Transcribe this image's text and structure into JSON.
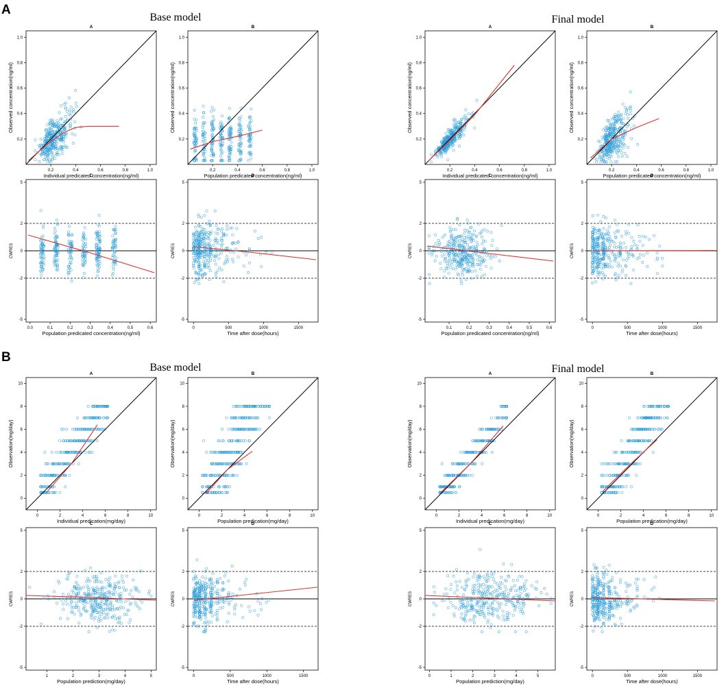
{
  "figure": {
    "panels": [
      {
        "letter": "A",
        "left_title": "Base model",
        "right_title": "Final model"
      },
      {
        "letter": "B",
        "left_title": "Base model",
        "right_title": "Final model"
      }
    ]
  },
  "colors": {
    "point": "#2f9ed8",
    "loess": "#e0302a",
    "identity": "#000000",
    "ref": "#000000"
  },
  "chart_data": [
    {
      "id": "A-base-A",
      "type": "scatter",
      "title": "A",
      "panel": "A",
      "model": "Base model",
      "xlabel": "Individual predicated concentration(ng/ml)",
      "ylabel": "Observed concentration(ng/ml)",
      "xlim": [
        0,
        1.05
      ],
      "ylim": [
        0,
        1.05
      ],
      "xticks": [
        0.2,
        0.4,
        0.6,
        0.8,
        1.0
      ],
      "yticks": [
        0.2,
        0.4,
        0.6,
        0.8,
        1.0
      ],
      "tick_labels": [
        "0.2",
        "0.4",
        "0.6",
        "0.8",
        "1.0"
      ],
      "identity_line": true,
      "trend": [
        [
          0.02,
          0.03
        ],
        [
          0.1,
          0.1
        ],
        [
          0.2,
          0.18
        ],
        [
          0.3,
          0.25
        ],
        [
          0.4,
          0.29
        ],
        [
          0.5,
          0.3
        ],
        [
          0.75,
          0.3
        ]
      ],
      "cloud": {
        "x_mean": 0.22,
        "x_sd": 0.09,
        "y_slope": 0.9,
        "y_sd": 0.08,
        "x_min": 0.02,
        "x_max": 0.75
      }
    },
    {
      "id": "A-base-B",
      "type": "scatter",
      "title": "B",
      "panel": "A",
      "model": "Base model",
      "xlabel": "Population predicated concentration(ng/ml)",
      "ylabel": "Observed concentration(ng/ml)",
      "xlim": [
        0,
        1.05
      ],
      "ylim": [
        0,
        1.05
      ],
      "xticks": [
        0.2,
        0.4,
        0.6,
        0.8,
        1.0
      ],
      "yticks": [
        0.2,
        0.4,
        0.6,
        0.8,
        1.0
      ],
      "tick_labels": [
        "0.2",
        "0.4",
        "0.6",
        "0.8",
        "1.0"
      ],
      "identity_line": true,
      "trend": [
        [
          0.02,
          0.12
        ],
        [
          0.2,
          0.18
        ],
        [
          0.4,
          0.22
        ],
        [
          0.6,
          0.27
        ]
      ],
      "cloud": {
        "x_bands": [
          0.06,
          0.13,
          0.2,
          0.27,
          0.34,
          0.42,
          0.5
        ],
        "band_jitter": 0.012,
        "y_mean": 0.2,
        "y_sd": 0.11
      }
    },
    {
      "id": "A-final-A",
      "type": "scatter",
      "title": "A",
      "panel": "A",
      "model": "Final model",
      "xlabel": "Individual predicated concentration(ng/ml)",
      "ylabel": "Observed concentration(ng/ml)",
      "xlim": [
        0,
        1.05
      ],
      "ylim": [
        0,
        1.05
      ],
      "xticks": [
        0.2,
        0.4,
        0.6,
        0.8,
        1.0
      ],
      "yticks": [
        0.2,
        0.4,
        0.6,
        0.8,
        1.0
      ],
      "tick_labels": [
        "0.2",
        "0.4",
        "0.6",
        "0.8",
        "1.0"
      ],
      "identity_line": true,
      "trend": [
        [
          0.03,
          0.03
        ],
        [
          0.2,
          0.19
        ],
        [
          0.4,
          0.39
        ],
        [
          0.72,
          0.78
        ]
      ],
      "cloud": {
        "x_mean": 0.19,
        "x_sd": 0.08,
        "y_slope": 1.0,
        "y_sd": 0.04,
        "x_min": 0.02,
        "x_max": 0.72
      }
    },
    {
      "id": "A-final-B",
      "type": "scatter",
      "title": "B",
      "panel": "A",
      "model": "Final model",
      "xlabel": "Population predicated concentration(ng/ml)",
      "ylabel": "Observed concentration(ng/ml)",
      "xlim": [
        0,
        1.05
      ],
      "ylim": [
        0,
        1.05
      ],
      "xticks": [
        0.2,
        0.4,
        0.6,
        0.8,
        1.0
      ],
      "yticks": [
        0.2,
        0.4,
        0.6,
        0.8,
        1.0
      ],
      "tick_labels": [
        "0.2",
        "0.4",
        "0.6",
        "0.8",
        "1.0"
      ],
      "identity_line": true,
      "trend": [
        [
          0.03,
          0.05
        ],
        [
          0.2,
          0.2
        ],
        [
          0.4,
          0.29
        ],
        [
          0.58,
          0.36
        ]
      ],
      "cloud": {
        "x_mean": 0.2,
        "x_sd": 0.08,
        "y_slope": 0.95,
        "y_sd": 0.09,
        "x_min": 0.02,
        "x_max": 0.58
      }
    },
    {
      "id": "A-base-C",
      "type": "scatter",
      "title": "C",
      "panel": "A",
      "model": "Base model",
      "xlabel": "Population predicated concentration(ng/ml)",
      "ylabel": "CWRES",
      "xlim": [
        -0.02,
        0.63
      ],
      "ylim": [
        -5.2,
        5.2
      ],
      "xticks": [
        0.0,
        0.1,
        0.2,
        0.3,
        0.4,
        0.5,
        0.6
      ],
      "yticks": [
        -5,
        -2,
        0,
        2,
        5
      ],
      "tick_labels_x": [
        "0.0",
        "0.1",
        "0.2",
        "0.3",
        "0.4",
        "0.5",
        "0.6"
      ],
      "tick_labels_y": [
        "-5",
        "-2",
        "0",
        "2",
        "5"
      ],
      "ref_lines": [
        -2,
        0,
        2
      ],
      "trend": [
        [
          -0.01,
          1.15
        ],
        [
          0.3,
          -0.15
        ],
        [
          0.62,
          -1.6
        ]
      ],
      "cloud": {
        "x_bands": [
          0.06,
          0.13,
          0.2,
          0.27,
          0.34,
          0.42
        ],
        "band_jitter": 0.01,
        "y_mean": 0.0,
        "y_sd": 0.9
      }
    },
    {
      "id": "A-base-D",
      "type": "scatter",
      "title": "D",
      "panel": "A",
      "model": "Base model",
      "xlabel": "Time after dose(hours)",
      "ylabel": "CWRES",
      "xlim": [
        -80,
        1780
      ],
      "ylim": [
        -5.2,
        5.2
      ],
      "xticks": [
        0,
        500,
        1000,
        1500
      ],
      "yticks": [
        -5,
        -2,
        0,
        2,
        5
      ],
      "tick_labels_x": [
        "0",
        "500",
        "1000",
        "1500"
      ],
      "tick_labels_y": [
        "-5",
        "-2",
        "0",
        "2",
        "5"
      ],
      "ref_lines": [
        -2,
        0,
        2
      ],
      "trend": [
        [
          0,
          0.3
        ],
        [
          800,
          -0.1
        ],
        [
          1750,
          -0.65
        ]
      ],
      "cloud": {
        "x_exp": 220,
        "x_max": 1700,
        "y_mean": 0.1,
        "y_sd": 0.95
      }
    },
    {
      "id": "A-final-C",
      "type": "scatter",
      "title": "C",
      "panel": "A",
      "model": "Final model",
      "xlabel": "Population predicated concentration(ng/ml)",
      "ylabel": "CWRES",
      "xlim": [
        -0.02,
        0.63
      ],
      "ylim": [
        -5.2,
        5.2
      ],
      "xticks": [
        0.1,
        0.2,
        0.3,
        0.4,
        0.5,
        0.6
      ],
      "yticks": [
        -5,
        -2,
        0,
        2,
        5
      ],
      "tick_labels_x": [
        "0.1",
        "0.2",
        "0.3",
        "0.4",
        "0.5",
        "0.6"
      ],
      "tick_labels_y": [
        "-5",
        "-2",
        "0",
        "2",
        "5"
      ],
      "ref_lines": [
        -2,
        0,
        2
      ],
      "trend": [
        [
          -0.01,
          0.35
        ],
        [
          0.3,
          -0.2
        ],
        [
          0.62,
          -0.75
        ]
      ],
      "cloud": {
        "x_mean": 0.17,
        "x_sd": 0.07,
        "x_min": 0.0,
        "x_max": 0.55,
        "y_mean": -0.1,
        "y_sd": 0.9
      }
    },
    {
      "id": "A-final-D",
      "type": "scatter",
      "title": "D",
      "panel": "A",
      "model": "Final model",
      "xlabel": "Time after dose(hours)",
      "ylabel": "CWRES",
      "xlim": [
        -80,
        1780
      ],
      "ylim": [
        -5.2,
        5.2
      ],
      "xticks": [
        0,
        500,
        1000,
        1500
      ],
      "yticks": [
        -5,
        -2,
        0,
        2,
        5
      ],
      "tick_labels_x": [
        "0",
        "500",
        "1000",
        "1500"
      ],
      "tick_labels_y": [
        "-5",
        "-2",
        "0",
        "2",
        "5"
      ],
      "ref_lines": [
        -2,
        0,
        2
      ],
      "trend": [
        [
          0,
          0.0
        ],
        [
          1750,
          0.02
        ]
      ],
      "cloud": {
        "x_exp": 220,
        "x_max": 1700,
        "y_mean": 0.0,
        "y_sd": 0.95
      }
    },
    {
      "id": "B-base-A",
      "type": "scatter",
      "title": "A",
      "panel": "B",
      "model": "Base model",
      "xlabel": "Individual predication(mg/day)",
      "ylabel": "Observation(mg/day)",
      "xlim": [
        -1,
        10.5
      ],
      "ylim": [
        -1,
        10.5
      ],
      "xticks": [
        0,
        2,
        4,
        6,
        8,
        10
      ],
      "yticks": [
        0,
        2,
        4,
        6,
        8,
        10
      ],
      "tick_labels": [
        "0",
        "2",
        "4",
        "6",
        "8",
        "10"
      ],
      "identity_line": true,
      "trend": [
        [
          0.8,
          0.5
        ],
        [
          3,
          3.0
        ],
        [
          5.3,
          6.4
        ]
      ],
      "cloud": {
        "y_levels": [
          0.5,
          1,
          2,
          3,
          4,
          5,
          6,
          7,
          8
        ],
        "x_slope": 0.72,
        "x_sd": 0.75
      }
    },
    {
      "id": "B-base-B",
      "type": "scatter",
      "title": "B",
      "panel": "B",
      "model": "Base model",
      "xlabel": "Population predication(mg/day)",
      "ylabel": "Observation(mg/day)",
      "xlim": [
        -1,
        10.5
      ],
      "ylim": [
        -1,
        10.5
      ],
      "xticks": [
        0,
        2,
        4,
        6,
        8,
        10
      ],
      "yticks": [
        0,
        2,
        4,
        6,
        8,
        10
      ],
      "tick_labels": [
        "0",
        "2",
        "4",
        "6",
        "8",
        "10"
      ],
      "identity_line": true,
      "trend": [
        [
          0.6,
          0.4
        ],
        [
          2.5,
          2.5
        ],
        [
          4.7,
          4.1
        ]
      ],
      "cloud": {
        "y_levels": [
          0.5,
          1,
          2,
          3,
          4,
          5,
          6,
          7,
          8
        ],
        "x_slope": 0.5,
        "x_sd": 0.85,
        "x_shift": 1.5
      }
    },
    {
      "id": "B-final-A",
      "type": "scatter",
      "title": "A",
      "panel": "B",
      "model": "Final model",
      "xlabel": "Individual predication(mg/day)",
      "ylabel": "Observation(mg/day)",
      "xlim": [
        -1,
        10.5
      ],
      "ylim": [
        -1,
        10.5
      ],
      "xticks": [
        0,
        2,
        4,
        6,
        8,
        10
      ],
      "yticks": [
        0,
        2,
        4,
        6,
        8,
        10
      ],
      "tick_labels": [
        "0",
        "2",
        "4",
        "6",
        "8",
        "10"
      ],
      "identity_line": true,
      "trend": [
        [
          0.4,
          0.5
        ],
        [
          3,
          3.0
        ],
        [
          5.9,
          6.3
        ]
      ],
      "cloud": {
        "y_levels": [
          0.5,
          1,
          2,
          3,
          4,
          5,
          6,
          7,
          8
        ],
        "x_slope": 0.85,
        "x_sd": 0.55
      }
    },
    {
      "id": "B-final-B",
      "type": "scatter",
      "title": "B",
      "panel": "B",
      "model": "Final model",
      "xlabel": "Population predication(mg/day)",
      "ylabel": "Observation(mg/day)",
      "xlim": [
        -1,
        10.5
      ],
      "ylim": [
        -1,
        10.5
      ],
      "xticks": [
        0,
        2,
        4,
        6,
        8,
        10
      ],
      "yticks": [
        0,
        2,
        4,
        6,
        8,
        10
      ],
      "tick_labels": [
        "0",
        "2",
        "4",
        "6",
        "8",
        "10"
      ],
      "identity_line": true,
      "trend": [
        [
          0.4,
          0.6
        ],
        [
          3,
          3.1
        ],
        [
          5.2,
          5.1
        ]
      ],
      "cloud": {
        "y_levels": [
          0.5,
          1,
          2,
          3,
          4,
          5,
          6,
          7,
          8
        ],
        "x_slope": 0.62,
        "x_sd": 0.7,
        "x_shift": 0.9
      }
    },
    {
      "id": "B-base-C",
      "type": "scatter",
      "title": "C",
      "panel": "B",
      "model": "Base model",
      "xlabel": "Population prediction(mg/day)",
      "ylabel": "CWRES",
      "xlim": [
        0.2,
        5.2
      ],
      "ylim": [
        -5.2,
        5.2
      ],
      "xticks": [
        1,
        2,
        3,
        4,
        5
      ],
      "yticks": [
        -5,
        -2,
        0,
        2,
        5
      ],
      "tick_labels_x": [
        "1",
        "2",
        "3",
        "4",
        "5"
      ],
      "tick_labels_y": [
        "-5",
        "-2",
        "0",
        "2",
        "5"
      ],
      "ref_lines": [
        -2,
        0,
        2
      ],
      "trend": [
        [
          0.2,
          0.25
        ],
        [
          2.7,
          0.1
        ],
        [
          5.2,
          -0.1
        ]
      ],
      "cloud": {
        "x_mean": 3.0,
        "x_sd": 0.8,
        "x_min": 0.3,
        "x_max": 5.0,
        "y_mean": 0.0,
        "y_sd": 0.9
      }
    },
    {
      "id": "B-base-D",
      "type": "scatter",
      "title": "D",
      "panel": "B",
      "model": "Base model",
      "xlabel": "Time after dose(hours)",
      "ylabel": "CWRES",
      "xlim": [
        -80,
        1700
      ],
      "ylim": [
        -5.2,
        5.2
      ],
      "xticks": [
        0,
        500,
        1000,
        1500
      ],
      "yticks": [
        -5,
        -2,
        0,
        2,
        5
      ],
      "tick_labels_x": [
        "0",
        "500",
        "1000",
        "1500"
      ],
      "tick_labels_y": [
        "-5",
        "-2",
        "0",
        "2",
        "5"
      ],
      "ref_lines": [
        -2,
        0,
        2
      ],
      "trend": [
        [
          0,
          -0.1
        ],
        [
          800,
          0.35
        ],
        [
          1690,
          0.85
        ]
      ],
      "cloud": {
        "x_exp": 200,
        "x_max": 1650,
        "y_mean": 0.0,
        "y_sd": 0.95
      }
    },
    {
      "id": "B-final-C",
      "type": "scatter",
      "title": "C",
      "panel": "B",
      "model": "Final model",
      "xlabel": "Population prediction(mg/day)",
      "ylabel": "CWRES",
      "xlim": [
        -0.2,
        5.8
      ],
      "ylim": [
        -5.2,
        5.2
      ],
      "xticks": [
        0,
        1,
        2,
        3,
        4,
        5
      ],
      "yticks": [
        -5,
        -2,
        0,
        2,
        5
      ],
      "tick_labels_x": [
        "0",
        "1",
        "2",
        "3",
        "4",
        "5"
      ],
      "tick_labels_y": [
        "-5",
        "-2",
        "0",
        "2",
        "5"
      ],
      "ref_lines": [
        -2,
        0,
        2
      ],
      "trend": [
        [
          -0.2,
          0.25
        ],
        [
          2.8,
          0.05
        ],
        [
          5.8,
          -0.15
        ]
      ],
      "cloud": {
        "x_mean": 2.8,
        "x_sd": 1.1,
        "x_min": 0.2,
        "x_max": 5.6,
        "y_mean": 0.0,
        "y_sd": 0.9
      }
    },
    {
      "id": "B-final-D",
      "type": "scatter",
      "title": "D",
      "panel": "B",
      "model": "Final model",
      "xlabel": "Time after dose(hours)",
      "ylabel": "CWRES",
      "xlim": [
        -80,
        1780
      ],
      "ylim": [
        -5.2,
        5.2
      ],
      "xticks": [
        0,
        500,
        1000,
        1500
      ],
      "yticks": [
        -5,
        -2,
        0,
        2,
        5
      ],
      "tick_labels_x": [
        "0",
        "500",
        "1000",
        "1500"
      ],
      "tick_labels_y": [
        "-5",
        "-2",
        "0",
        "2",
        "5"
      ],
      "ref_lines": [
        -2,
        0,
        2
      ],
      "trend": [
        [
          0,
          0.1
        ],
        [
          1750,
          -0.15
        ]
      ],
      "cloud": {
        "x_exp": 200,
        "x_max": 1700,
        "y_mean": 0.0,
        "y_sd": 0.95
      }
    }
  ]
}
